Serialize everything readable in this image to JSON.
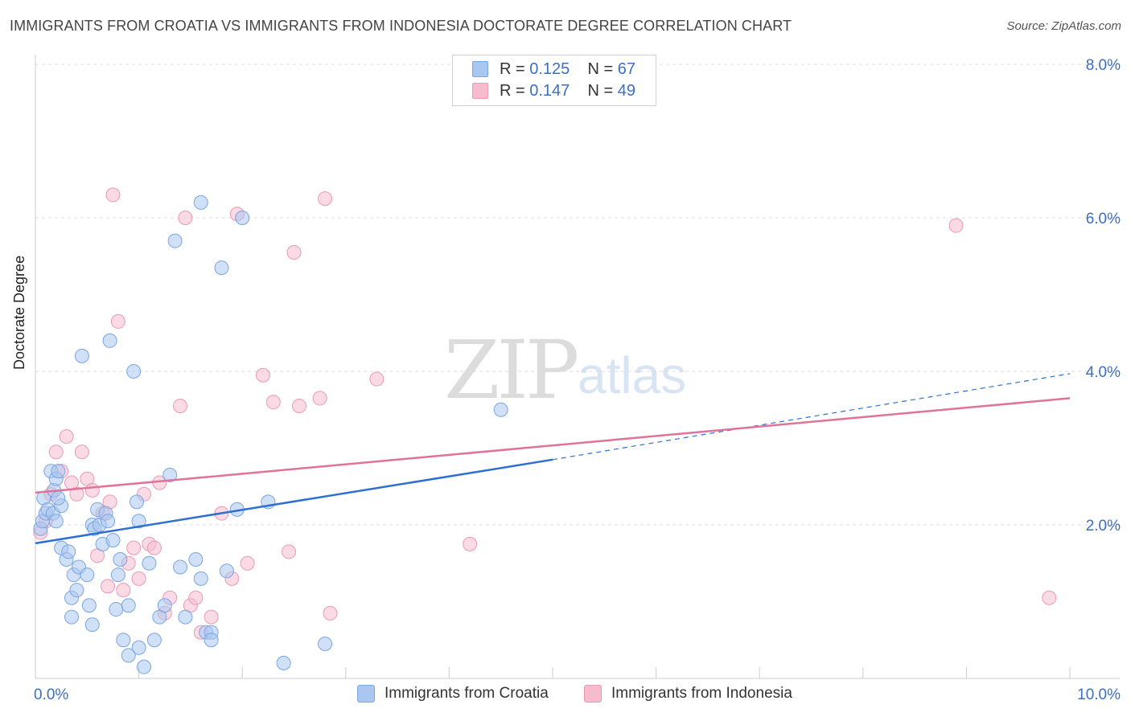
{
  "title": "IMMIGRANTS FROM CROATIA VS IMMIGRANTS FROM INDONESIA DOCTORATE DEGREE CORRELATION CHART",
  "source": "Source: ZipAtlas.com",
  "watermark": {
    "zip": "ZIP",
    "atlas": "atlas"
  },
  "legend": {
    "r_label": "R = ",
    "n_label": "N = ",
    "croatia": {
      "r": "0.125",
      "n": "67"
    },
    "indonesia": {
      "r": "0.147",
      "n": "49"
    }
  },
  "colors": {
    "croatia_fill": "#a9c7f0",
    "croatia_stroke": "#7aa6e0",
    "croatia_line": "#2f6fd1",
    "indonesia_fill": "#f6bccd",
    "indonesia_stroke": "#ec9ab3",
    "indonesia_line": "#e0739a",
    "axis_label": "#3b6fc4"
  },
  "chart_data": {
    "type": "scatter",
    "title": "IMMIGRANTS FROM CROATIA VS IMMIGRANTS FROM INDONESIA DOCTORATE DEGREE CORRELATION CHART",
    "xlabel": "",
    "ylabel": "Doctorate Degree",
    "xlim": [
      0,
      10
    ],
    "ylim": [
      0,
      8
    ],
    "x_tick_labels": [
      "0.0%",
      "10.0%"
    ],
    "y_ticks": [
      2,
      4,
      6,
      8
    ],
    "y_tick_labels": [
      "2.0%",
      "4.0%",
      "6.0%",
      "8.0%"
    ],
    "grid": true,
    "series": [
      {
        "name": "Immigrants from Croatia",
        "trend": {
          "x0": 0,
          "y0": 1.76,
          "x1": 5.0,
          "y1": 2.85,
          "dashed_to_x": 10,
          "dashed_to_y": 3.97
        },
        "points": [
          [
            0.05,
            1.95
          ],
          [
            0.07,
            2.05
          ],
          [
            0.08,
            2.35
          ],
          [
            0.1,
            2.15
          ],
          [
            0.12,
            2.2
          ],
          [
            0.15,
            2.7
          ],
          [
            0.17,
            2.15
          ],
          [
            0.18,
            2.45
          ],
          [
            0.2,
            2.6
          ],
          [
            0.2,
            2.05
          ],
          [
            0.22,
            2.7
          ],
          [
            0.25,
            2.25
          ],
          [
            0.25,
            1.7
          ],
          [
            0.3,
            1.55
          ],
          [
            0.32,
            1.65
          ],
          [
            0.35,
            1.05
          ],
          [
            0.37,
            1.35
          ],
          [
            0.4,
            1.15
          ],
          [
            0.42,
            1.45
          ],
          [
            0.45,
            4.2
          ],
          [
            0.5,
            1.35
          ],
          [
            0.52,
            0.95
          ],
          [
            0.55,
            2.0
          ],
          [
            0.57,
            1.95
          ],
          [
            0.6,
            2.2
          ],
          [
            0.62,
            2.0
          ],
          [
            0.65,
            1.75
          ],
          [
            0.68,
            2.15
          ],
          [
            0.7,
            2.05
          ],
          [
            0.72,
            4.4
          ],
          [
            0.75,
            1.8
          ],
          [
            0.78,
            0.9
          ],
          [
            0.8,
            1.35
          ],
          [
            0.82,
            1.55
          ],
          [
            0.85,
            0.5
          ],
          [
            0.9,
            0.95
          ],
          [
            0.95,
            4.0
          ],
          [
            0.98,
            2.3
          ],
          [
            1.0,
            2.05
          ],
          [
            1.05,
            0.15
          ],
          [
            1.1,
            1.5
          ],
          [
            1.2,
            0.8
          ],
          [
            1.25,
            0.95
          ],
          [
            1.3,
            2.65
          ],
          [
            1.35,
            5.7
          ],
          [
            1.4,
            1.45
          ],
          [
            1.45,
            0.8
          ],
          [
            1.55,
            1.55
          ],
          [
            1.6,
            1.3
          ],
          [
            1.6,
            6.2
          ],
          [
            1.65,
            0.6
          ],
          [
            1.7,
            0.6
          ],
          [
            1.8,
            5.35
          ],
          [
            1.85,
            1.4
          ],
          [
            1.95,
            2.2
          ],
          [
            2.0,
            6.0
          ],
          [
            2.25,
            2.3
          ],
          [
            2.4,
            0.2
          ],
          [
            2.8,
            0.45
          ],
          [
            4.5,
            3.5
          ],
          [
            1.7,
            0.5
          ],
          [
            1.0,
            0.4
          ],
          [
            0.9,
            0.3
          ],
          [
            0.35,
            0.8
          ],
          [
            0.55,
            0.7
          ],
          [
            0.22,
            2.35
          ],
          [
            1.15,
            0.5
          ]
        ]
      },
      {
        "name": "Immigrants from Indonesia",
        "trend": {
          "x0": 0,
          "y0": 2.42,
          "x1": 10,
          "y1": 3.65
        },
        "points": [
          [
            0.05,
            1.9
          ],
          [
            0.1,
            2.05
          ],
          [
            0.15,
            2.4
          ],
          [
            0.2,
            2.95
          ],
          [
            0.25,
            2.7
          ],
          [
            0.3,
            3.15
          ],
          [
            0.35,
            2.55
          ],
          [
            0.4,
            2.4
          ],
          [
            0.45,
            2.95
          ],
          [
            0.5,
            2.6
          ],
          [
            0.55,
            2.45
          ],
          [
            0.6,
            1.6
          ],
          [
            0.65,
            2.15
          ],
          [
            0.7,
            1.2
          ],
          [
            0.72,
            2.3
          ],
          [
            0.75,
            6.3
          ],
          [
            0.8,
            4.65
          ],
          [
            0.85,
            1.15
          ],
          [
            0.9,
            1.5
          ],
          [
            0.95,
            1.7
          ],
          [
            1.0,
            1.3
          ],
          [
            1.05,
            2.4
          ],
          [
            1.1,
            1.75
          ],
          [
            1.15,
            1.7
          ],
          [
            1.2,
            2.55
          ],
          [
            1.25,
            0.85
          ],
          [
            1.3,
            1.05
          ],
          [
            1.4,
            3.55
          ],
          [
            1.45,
            6.0
          ],
          [
            1.5,
            0.95
          ],
          [
            1.55,
            1.05
          ],
          [
            1.6,
            0.6
          ],
          [
            1.7,
            0.8
          ],
          [
            1.8,
            2.15
          ],
          [
            1.9,
            1.3
          ],
          [
            1.95,
            6.05
          ],
          [
            2.05,
            1.5
          ],
          [
            2.2,
            3.95
          ],
          [
            2.3,
            3.6
          ],
          [
            2.45,
            1.65
          ],
          [
            2.5,
            5.55
          ],
          [
            2.55,
            3.55
          ],
          [
            2.75,
            3.65
          ],
          [
            2.8,
            6.25
          ],
          [
            2.85,
            0.85
          ],
          [
            3.3,
            3.9
          ],
          [
            4.2,
            1.75
          ],
          [
            8.9,
            5.9
          ],
          [
            9.8,
            1.05
          ]
        ]
      }
    ]
  },
  "bottom_legend": {
    "croatia": "Immigrants from Croatia",
    "indonesia": "Immigrants from Indonesia"
  }
}
